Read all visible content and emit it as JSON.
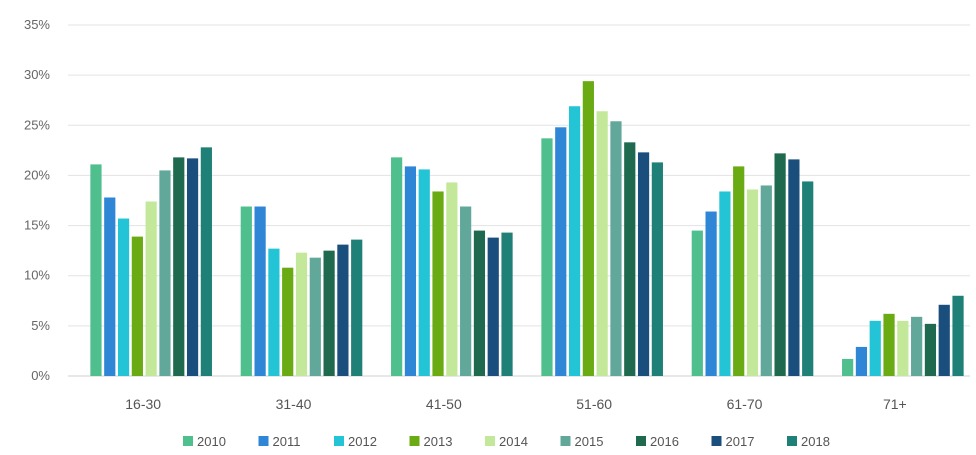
{
  "chart_data": {
    "type": "bar",
    "categories": [
      "16-30",
      "31-40",
      "41-50",
      "51-60",
      "61-70",
      "71+"
    ],
    "y_ticks": [
      "0%",
      "5%",
      "10%",
      "15%",
      "20%",
      "25%",
      "30%",
      "35%"
    ],
    "ylim": [
      0,
      35
    ],
    "grid": true,
    "legend_position": "bottom",
    "series": [
      {
        "name": "2010",
        "color": "#4ebf8d",
        "values": [
          21.1,
          16.9,
          21.8,
          23.7,
          14.5,
          1.7
        ]
      },
      {
        "name": "2011",
        "color": "#2f86d6",
        "values": [
          17.8,
          16.9,
          20.9,
          24.8,
          16.4,
          2.9
        ]
      },
      {
        "name": "2012",
        "color": "#23c4d6",
        "values": [
          15.7,
          12.7,
          20.6,
          26.9,
          18.4,
          5.5
        ]
      },
      {
        "name": "2013",
        "color": "#6aaa12",
        "values": [
          13.9,
          10.8,
          18.4,
          29.4,
          20.9,
          6.2
        ]
      },
      {
        "name": "2014",
        "color": "#c4e89a",
        "values": [
          17.4,
          12.3,
          19.3,
          26.4,
          18.6,
          5.5
        ]
      },
      {
        "name": "2015",
        "color": "#62a89a",
        "values": [
          20.5,
          11.8,
          16.9,
          25.4,
          19.0,
          5.9
        ]
      },
      {
        "name": "2016",
        "color": "#1f6a4e",
        "values": [
          21.8,
          12.5,
          14.5,
          23.3,
          22.2,
          5.2
        ]
      },
      {
        "name": "2017",
        "color": "#1a4e7c",
        "values": [
          21.7,
          13.1,
          13.8,
          22.3,
          21.6,
          7.1
        ]
      },
      {
        "name": "2018",
        "color": "#1f8078",
        "values": [
          22.8,
          13.6,
          14.3,
          21.3,
          19.4,
          8.0
        ]
      }
    ]
  }
}
